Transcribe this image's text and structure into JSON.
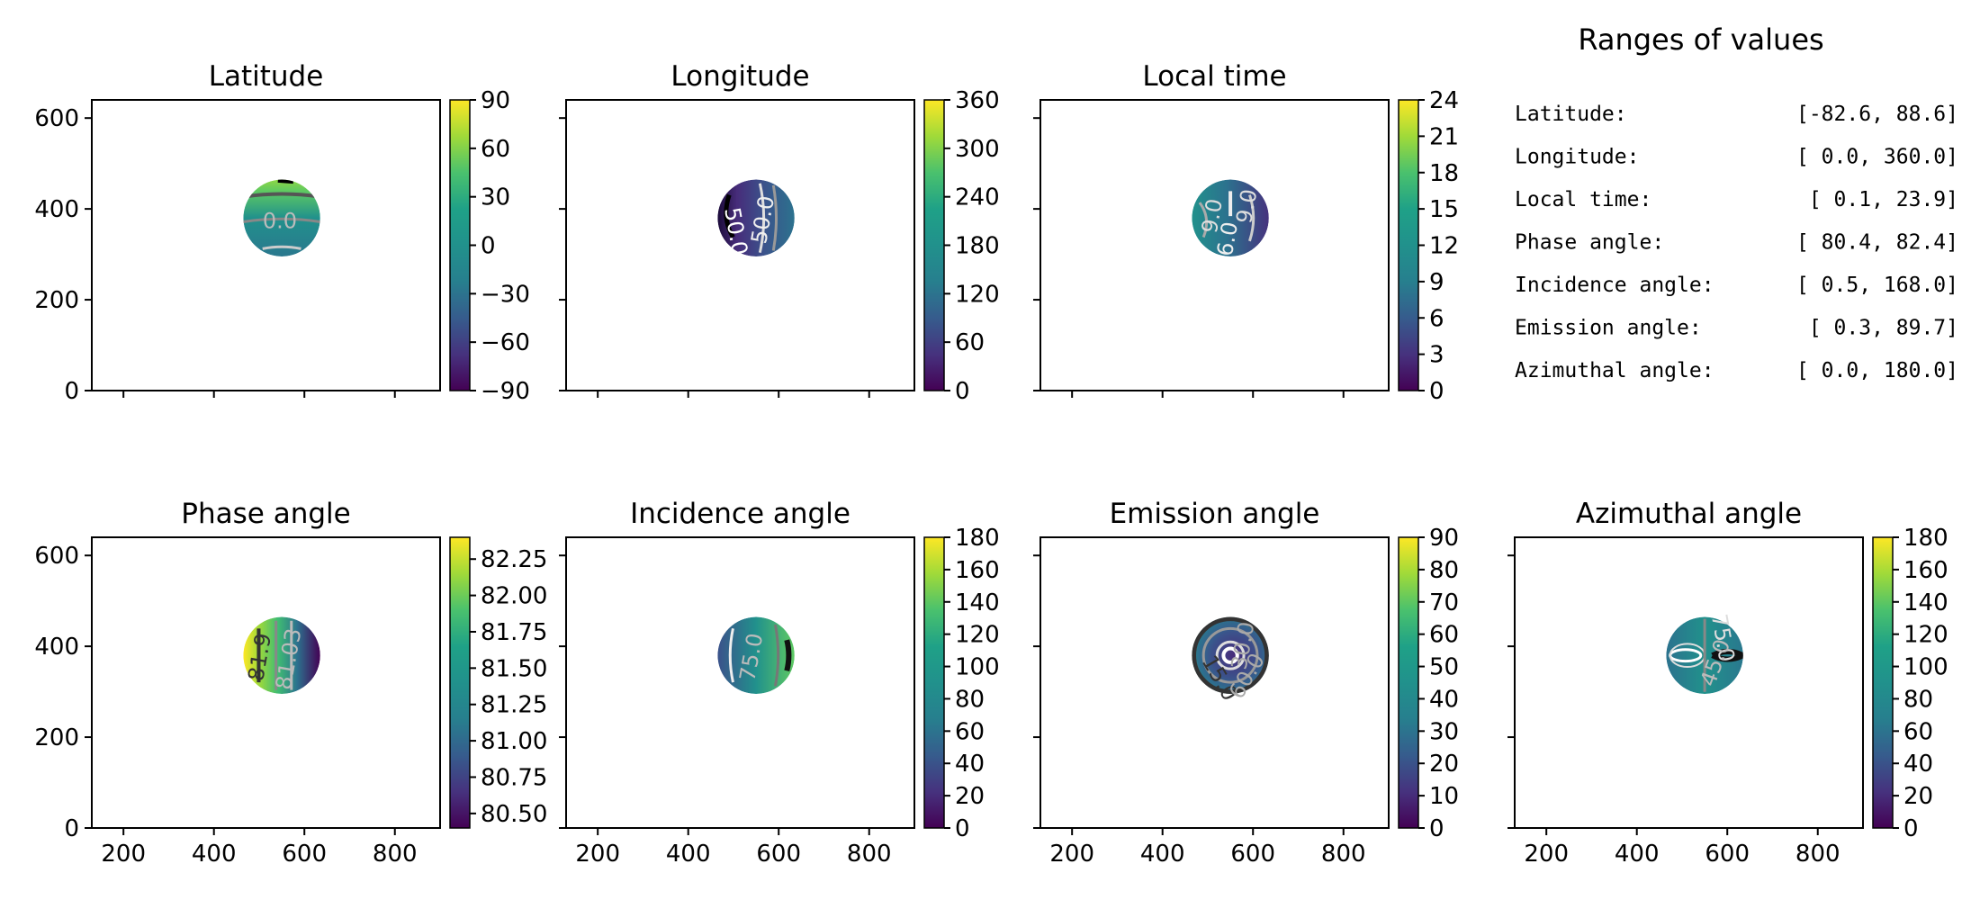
{
  "chart_data": [
    {
      "type": "heatmap",
      "title": "Latitude",
      "colormap": "viridis",
      "show_xticklabels": false,
      "xticks": [
        200,
        400,
        600,
        800
      ],
      "yticks": [
        0,
        200,
        400,
        600
      ],
      "xlim": [
        130,
        900
      ],
      "ylim": [
        0,
        640
      ],
      "disk_center": [
        550,
        380
      ],
      "disk_radius": 85,
      "colorbar": {
        "min": -90,
        "max": 90,
        "ticks": [
          90,
          60,
          30,
          0,
          -30,
          -60,
          -90
        ],
        "tick_labels": [
          "90",
          "60",
          "30",
          "0",
          "−30",
          "−60",
          "−90"
        ]
      },
      "contour_labels": [
        "0.0"
      ]
    },
    {
      "type": "heatmap",
      "title": "Longitude",
      "colormap": "viridis",
      "show_xticklabels": false,
      "xticks": [
        200,
        400,
        600,
        800
      ],
      "yticks": [
        0,
        200,
        400,
        600
      ],
      "xlim": [
        130,
        900
      ],
      "ylim": [
        0,
        640
      ],
      "disk_center": [
        550,
        380
      ],
      "disk_radius": 85,
      "colorbar": {
        "min": 0,
        "max": 360,
        "ticks": [
          360,
          300,
          240,
          180,
          120,
          60,
          0
        ],
        "tick_labels": [
          "360",
          "300",
          "240",
          "180",
          "120",
          "60",
          "0"
        ]
      },
      "contour_labels": [
        "50.0",
        "50.0"
      ]
    },
    {
      "type": "heatmap",
      "title": "Local time",
      "colormap": "viridis",
      "show_xticklabels": false,
      "xticks": [
        200,
        400,
        600,
        800
      ],
      "yticks": [
        0,
        200,
        400,
        600
      ],
      "xlim": [
        130,
        900
      ],
      "ylim": [
        0,
        640
      ],
      "disk_center": [
        550,
        380
      ],
      "disk_radius": 85,
      "colorbar": {
        "min": 0,
        "max": 24,
        "ticks": [
          24,
          21,
          18,
          15,
          12,
          9,
          6,
          3,
          0
        ],
        "tick_labels": [
          "24",
          "21",
          "18",
          "15",
          "12",
          "9",
          "6",
          "3",
          "0"
        ]
      },
      "contour_labels": [
        "9.0",
        "9.0",
        "6.0"
      ]
    },
    {
      "type": "heatmap",
      "title": "Phase angle",
      "colormap": "viridis",
      "show_xticklabels": true,
      "xticks": [
        200,
        400,
        600,
        800
      ],
      "yticks": [
        0,
        200,
        400,
        600
      ],
      "xlim": [
        130,
        900
      ],
      "ylim": [
        0,
        640
      ],
      "disk_center": [
        550,
        380
      ],
      "disk_radius": 85,
      "colorbar": {
        "min": 80.4,
        "max": 82.4,
        "ticks": [
          82.25,
          82.0,
          81.75,
          81.5,
          81.25,
          81.0,
          80.75,
          80.5
        ],
        "tick_labels": [
          "82.25",
          "82.00",
          "81.75",
          "81.50",
          "81.25",
          "81.00",
          "80.75",
          "80.50"
        ]
      },
      "contour_labels": [
        "81.9",
        "81.03"
      ]
    },
    {
      "type": "heatmap",
      "title": "Incidence angle",
      "colormap": "viridis",
      "show_xticklabels": true,
      "xticks": [
        200,
        400,
        600,
        800
      ],
      "yticks": [
        0,
        200,
        400,
        600
      ],
      "xlim": [
        130,
        900
      ],
      "ylim": [
        0,
        640
      ],
      "disk_center": [
        550,
        380
      ],
      "disk_radius": 85,
      "colorbar": {
        "min": 0,
        "max": 180,
        "ticks": [
          180,
          160,
          140,
          120,
          100,
          80,
          60,
          40,
          20,
          0
        ],
        "tick_labels": [
          "180",
          "160",
          "140",
          "120",
          "100",
          "80",
          "60",
          "40",
          "20",
          "0"
        ]
      },
      "contour_labels": [
        "75.0"
      ]
    },
    {
      "type": "heatmap",
      "title": "Emission angle",
      "colormap": "viridis",
      "show_xticklabels": true,
      "xticks": [
        200,
        400,
        600,
        800
      ],
      "yticks": [
        0,
        200,
        400,
        600
      ],
      "xlim": [
        130,
        900
      ],
      "ylim": [
        0,
        640
      ],
      "disk_center": [
        550,
        380
      ],
      "disk_radius": 85,
      "colorbar": {
        "min": 0,
        "max": 90,
        "ticks": [
          90,
          80,
          70,
          60,
          50,
          40,
          30,
          20,
          10,
          0
        ],
        "tick_labels": [
          "90",
          "80",
          "70",
          "60",
          "50",
          "40",
          "30",
          "20",
          "10",
          "0"
        ]
      },
      "contour_labels": [
        "30.0",
        "15.0",
        "60.0"
      ]
    },
    {
      "type": "heatmap",
      "title": "Azimuthal angle",
      "colormap": "viridis",
      "show_xticklabels": true,
      "xticks": [
        200,
        400,
        600,
        800
      ],
      "yticks": [
        0,
        200,
        400,
        600
      ],
      "xlim": [
        130,
        900
      ],
      "ylim": [
        0,
        640
      ],
      "disk_center": [
        550,
        380
      ],
      "disk_radius": 85,
      "colorbar": {
        "min": 0,
        "max": 180,
        "ticks": [
          180,
          160,
          140,
          120,
          100,
          80,
          60,
          40,
          20,
          0
        ],
        "tick_labels": [
          "180",
          "160",
          "140",
          "120",
          "100",
          "80",
          "60",
          "40",
          "20",
          "0"
        ]
      },
      "contour_labels": [
        "75.0",
        "45.0"
      ]
    }
  ],
  "ranges": {
    "title": "Ranges of values",
    "rows": [
      {
        "label": "Latitude:",
        "value": "[-82.6,  88.6]"
      },
      {
        "label": "Longitude:",
        "value": "[  0.0, 360.0]"
      },
      {
        "label": "Local time:",
        "value": "[  0.1,  23.9]"
      },
      {
        "label": "Phase angle:",
        "value": "[ 80.4,  82.4]"
      },
      {
        "label": "Incidence angle:",
        "value": "[  0.5, 168.0]"
      },
      {
        "label": "Emission angle:",
        "value": "[  0.3,  89.7]"
      },
      {
        "label": "Azimuthal angle:",
        "value": "[  0.0, 180.0]"
      }
    ]
  }
}
